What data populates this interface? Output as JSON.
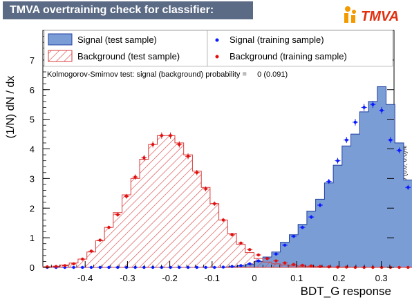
{
  "title": "TMVA overtraining check for classifier: BDT_G",
  "logo_text": "TMVA",
  "ks_text": "Kolmogorov-Smirnov test: signal (background) probability =     0 (0.091)",
  "side_text": "U/O-flow (S,B): (0.0, 0.0)% / (0.0, 0.0)%",
  "colors": {
    "signal_fill": "#7b9dd6",
    "signal_line": "#1f3fa0",
    "bkg_hatch": "#d93a3a",
    "sig_points": "#0a1aff",
    "bkg_points": "#e01010",
    "title_bg": "#5b6a85",
    "logo_orange": "#f29a00"
  },
  "legend": {
    "sig_test": "Signal (test sample)",
    "bkg_test": "Background (test sample)",
    "sig_train": "Signal (training sample)",
    "bkg_train": "Background (training sample)"
  },
  "chart_data": {
    "type": "histogram",
    "xlabel": "BDT_G response",
    "ylabel": "(1/N) dN / dx",
    "xlim": [
      -0.5,
      0.33
    ],
    "ylim": [
      0,
      8
    ],
    "x_tick_labels": [
      "-0.4",
      "-0.3",
      "-0.2",
      "-0.1",
      "0",
      "0.1",
      "0.2",
      "0.3"
    ],
    "x_tick_values": [
      -0.4,
      -0.3,
      -0.2,
      -0.1,
      0,
      0.1,
      0.2,
      0.3
    ],
    "y_tick_values": [
      0,
      1,
      2,
      3,
      4,
      5,
      6,
      7
    ],
    "y_tick_labels": [
      "0",
      "1",
      "2",
      "3",
      "4",
      "5",
      "6",
      "7"
    ],
    "bin_low": -0.5,
    "bin_width": 0.0208,
    "series": [
      {
        "name": "Signal (test sample)",
        "values": [
          0,
          0,
          0,
          0,
          0,
          0,
          0,
          0,
          0,
          0,
          0,
          0,
          0,
          0,
          0,
          0,
          0,
          0,
          0,
          0,
          0.01,
          0.02,
          0.05,
          0.1,
          0.2,
          0.35,
          0.52,
          0.85,
          1.1,
          1.45,
          1.9,
          2.3,
          2.85,
          3.45,
          4.1,
          4.5,
          5.25,
          5.6,
          6.1,
          5.5,
          4.2,
          2.95,
          1.35,
          0.55,
          0.18
        ]
      },
      {
        "name": "Background (test sample)",
        "values": [
          0.02,
          0.04,
          0.08,
          0.15,
          0.28,
          0.52,
          0.9,
          1.35,
          1.85,
          2.45,
          3.0,
          3.65,
          4.15,
          4.45,
          4.45,
          4.2,
          3.8,
          3.25,
          2.7,
          2.15,
          1.6,
          1.15,
          0.78,
          0.5,
          0.3,
          0.18,
          0.12,
          0.08,
          0.05,
          0.04,
          0.03,
          0.02,
          0.01,
          0.01,
          0.01,
          0,
          0,
          0,
          0,
          0,
          0,
          0,
          0,
          0,
          0
        ]
      },
      {
        "name": "Signal (training sample)",
        "values": [
          0,
          0,
          0,
          0,
          0,
          0,
          0,
          0,
          0,
          0,
          0,
          0,
          0,
          0,
          0,
          0,
          0,
          0,
          0,
          0,
          0.01,
          0.03,
          0.06,
          0.12,
          0.22,
          0.3,
          0.45,
          0.75,
          1.05,
          1.35,
          1.7,
          2.1,
          2.9,
          3.6,
          4.3,
          4.9,
          5.4,
          5.5,
          5.3,
          4.3,
          3.95,
          2.7,
          1.3,
          0.6,
          0.15
        ]
      },
      {
        "name": "Background (training sample)",
        "values": [
          0.02,
          0.03,
          0.06,
          0.12,
          0.28,
          0.55,
          0.92,
          1.35,
          1.78,
          2.4,
          3.05,
          3.7,
          4.15,
          4.45,
          4.45,
          4.15,
          3.75,
          3.2,
          2.65,
          2.15,
          1.6,
          1.1,
          0.82,
          0.6,
          0.42,
          0.3,
          0.22,
          0.15,
          0.1,
          0.07,
          0.05,
          0.03,
          0.02,
          0.01,
          0.01,
          0,
          0,
          0,
          0,
          0,
          0,
          0,
          0,
          0,
          0
        ]
      }
    ]
  }
}
